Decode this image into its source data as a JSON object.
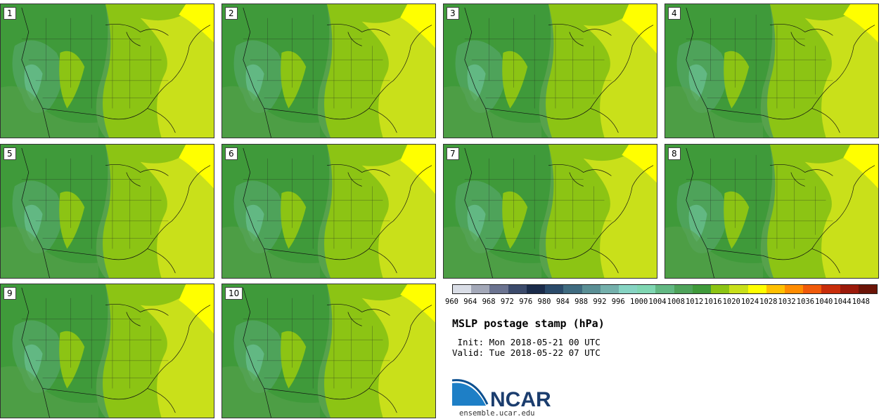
{
  "panels": [
    {
      "label": "1"
    },
    {
      "label": "2"
    },
    {
      "label": "3"
    },
    {
      "label": "4"
    },
    {
      "label": "5"
    },
    {
      "label": "6"
    },
    {
      "label": "7"
    },
    {
      "label": "8"
    },
    {
      "label": "9"
    },
    {
      "label": "10"
    }
  ],
  "colorbar": {
    "ticks": [
      "960",
      "964",
      "968",
      "972",
      "976",
      "980",
      "984",
      "988",
      "992",
      "996",
      "1000",
      "1004",
      "1008",
      "1012",
      "1016",
      "1020",
      "1024",
      "1028",
      "1032",
      "1036",
      "1040",
      "1044",
      "1048"
    ],
    "colors": [
      "#d9dde6",
      "#a3a8b8",
      "#6b7390",
      "#3b4a6b",
      "#1a2b4a",
      "#2a4a6a",
      "#3f6b80",
      "#5a8f95",
      "#74b0ac",
      "#86d4c3",
      "#7fd6b2",
      "#62b883",
      "#4ea35a",
      "#3f9a3a",
      "#8cc414",
      "#c9e01a",
      "#ffff00",
      "#ffc000",
      "#ff8c00",
      "#f05a0a",
      "#c82d0a",
      "#9b1a0a",
      "#6b1407"
    ]
  },
  "title": "MSLP postage stamp (hPa)",
  "init": " Init: Mon 2018-05-21 00 UTC",
  "valid": "Valid: Tue 2018-05-22 07 UTC",
  "logo": {
    "text": "NCAR",
    "url_text": "ensemble.ucar.edu",
    "color": "#0b4f8f"
  }
}
